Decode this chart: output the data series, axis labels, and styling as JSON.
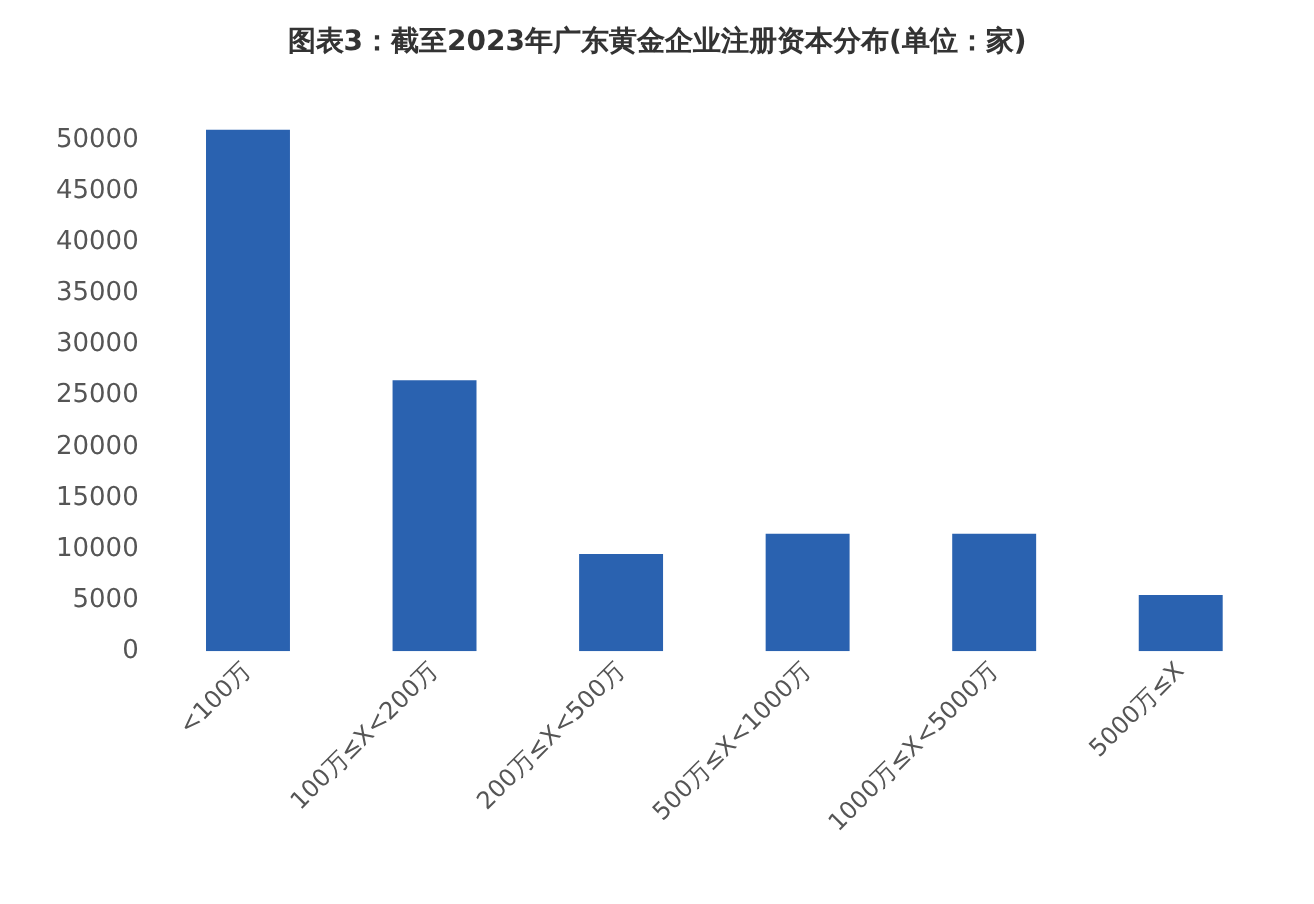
{
  "chart_data": {
    "type": "bar",
    "title": "图表3：截至2023年广东黄金企业注册资本分布(单位：家)",
    "categories": [
      "<100万",
      "100万≤X<200万",
      "200万≤X<500万",
      "500万≤X<1000万",
      "1000万≤X<5000万",
      "5000万≤X"
    ],
    "values": [
      51000,
      26500,
      9500,
      11500,
      11500,
      5500
    ],
    "color": "#2a62b0",
    "ylim": [
      0,
      52000
    ],
    "yticks": [
      0,
      5000,
      10000,
      15000,
      20000,
      25000,
      30000,
      35000,
      40000,
      45000,
      50000
    ],
    "grid": false,
    "legend": false
  }
}
